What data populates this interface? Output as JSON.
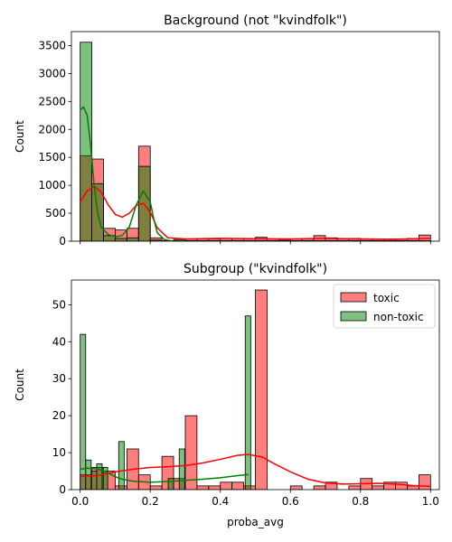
{
  "chart_data": [
    {
      "type": "histogram",
      "title": "Background (not \"kvindfolk\")",
      "xlabel": "",
      "ylabel": "Count",
      "xlim": [
        -0.025,
        1.025
      ],
      "ylim": [
        0,
        3750
      ],
      "yticks": [
        0,
        500,
        1000,
        1500,
        2000,
        2500,
        3000,
        3500
      ],
      "xticks": [
        0.0,
        0.2,
        0.4,
        0.6,
        0.8,
        1.0
      ],
      "show_xtick_labels": false,
      "legend": false,
      "bin_width": 0.0333,
      "series": [
        {
          "name": "toxic",
          "color": "#ff0000",
          "bins": [
            [
              0.0,
              1530
            ],
            [
              0.0333,
              1470
            ],
            [
              0.0667,
              230
            ],
            [
              0.1,
              200
            ],
            [
              0.1333,
              230
            ],
            [
              0.1667,
              1700
            ],
            [
              0.2,
              60
            ],
            [
              0.2333,
              10
            ],
            [
              0.2667,
              30
            ],
            [
              0.3,
              40
            ],
            [
              0.3333,
              40
            ],
            [
              0.3667,
              40
            ],
            [
              0.4,
              50
            ],
            [
              0.4333,
              50
            ],
            [
              0.4667,
              40
            ],
            [
              0.5,
              70
            ],
            [
              0.5333,
              40
            ],
            [
              0.5667,
              30
            ],
            [
              0.6,
              40
            ],
            [
              0.6333,
              40
            ],
            [
              0.6667,
              100
            ],
            [
              0.7,
              60
            ],
            [
              0.7333,
              40
            ],
            [
              0.7667,
              50
            ],
            [
              0.8,
              40
            ],
            [
              0.8333,
              40
            ],
            [
              0.8667,
              40
            ],
            [
              0.9,
              40
            ],
            [
              0.9333,
              50
            ],
            [
              0.9667,
              110
            ]
          ],
          "kde": [
            [
              0.0,
              700
            ],
            [
              0.02,
              900
            ],
            [
              0.04,
              980
            ],
            [
              0.06,
              880
            ],
            [
              0.08,
              650
            ],
            [
              0.1,
              480
            ],
            [
              0.12,
              430
            ],
            [
              0.14,
              500
            ],
            [
              0.16,
              640
            ],
            [
              0.18,
              680
            ],
            [
              0.2,
              520
            ],
            [
              0.22,
              240
            ],
            [
              0.25,
              60
            ],
            [
              0.3,
              40
            ],
            [
              0.4,
              50
            ],
            [
              0.5,
              45
            ],
            [
              0.6,
              40
            ],
            [
              0.7,
              50
            ],
            [
              0.8,
              40
            ],
            [
              0.9,
              35
            ],
            [
              0.95,
              45
            ],
            [
              1.0,
              50
            ]
          ]
        },
        {
          "name": "non-toxic",
          "color": "#008000",
          "bins": [
            [
              0.0,
              3560
            ],
            [
              0.0333,
              1030
            ],
            [
              0.0667,
              100
            ],
            [
              0.1,
              50
            ],
            [
              0.1333,
              60
            ],
            [
              0.1667,
              1340
            ],
            [
              0.2,
              20
            ],
            [
              0.2333,
              10
            ],
            [
              0.2667,
              10
            ],
            [
              0.3,
              10
            ],
            [
              0.3333,
              10
            ],
            [
              0.3667,
              10
            ],
            [
              0.4,
              10
            ],
            [
              0.4333,
              10
            ],
            [
              0.4667,
              10
            ],
            [
              0.5,
              10
            ],
            [
              0.5333,
              10
            ],
            [
              0.5667,
              10
            ],
            [
              0.6,
              10
            ],
            [
              0.6333,
              10
            ],
            [
              0.6667,
              10
            ],
            [
              0.7,
              10
            ],
            [
              0.7333,
              10
            ],
            [
              0.7667,
              10
            ],
            [
              0.8,
              10
            ],
            [
              0.8333,
              10
            ],
            [
              0.8667,
              10
            ],
            [
              0.9,
              10
            ],
            [
              0.9333,
              10
            ],
            [
              0.9667,
              10
            ]
          ],
          "kde": [
            [
              0.0,
              2350
            ],
            [
              0.01,
              2400
            ],
            [
              0.02,
              2250
            ],
            [
              0.03,
              1700
            ],
            [
              0.04,
              1000
            ],
            [
              0.05,
              500
            ],
            [
              0.06,
              250
            ],
            [
              0.08,
              120
            ],
            [
              0.1,
              80
            ],
            [
              0.12,
              100
            ],
            [
              0.14,
              250
            ],
            [
              0.16,
              650
            ],
            [
              0.18,
              900
            ],
            [
              0.2,
              700
            ],
            [
              0.21,
              400
            ],
            [
              0.22,
              150
            ],
            [
              0.24,
              30
            ],
            [
              0.26,
              5
            ],
            [
              0.3,
              2
            ]
          ]
        }
      ]
    },
    {
      "type": "histogram",
      "title": "Subgroup (\"kvindfolk\")",
      "xlabel": "proba_avg",
      "ylabel": "Count",
      "xlim": [
        -0.025,
        1.025
      ],
      "ylim": [
        0,
        56.7
      ],
      "yticks": [
        0,
        10,
        20,
        30,
        40,
        50
      ],
      "xticks": [
        0.0,
        0.2,
        0.4,
        0.6,
        0.8,
        1.0
      ],
      "xtick_labels": [
        "0.0",
        "0.2",
        "0.4",
        "0.6",
        "0.8",
        "1.0"
      ],
      "show_xtick_labels": true,
      "legend": true,
      "legend_position": "top-right",
      "series": [
        {
          "name": "toxic",
          "color": "#ff0000",
          "bin_width": 0.0333,
          "bins": [
            [
              0.0,
              4
            ],
            [
              0.0333,
              6
            ],
            [
              0.0667,
              5
            ],
            [
              0.1,
              1
            ],
            [
              0.1333,
              11
            ],
            [
              0.1667,
              4
            ],
            [
              0.2,
              1
            ],
            [
              0.2333,
              9
            ],
            [
              0.2667,
              3
            ],
            [
              0.3,
              20
            ],
            [
              0.3333,
              1
            ],
            [
              0.3667,
              1
            ],
            [
              0.4,
              2
            ],
            [
              0.4333,
              2
            ],
            [
              0.4667,
              1
            ],
            [
              0.5,
              54
            ],
            [
              0.5333,
              0
            ],
            [
              0.5667,
              0
            ],
            [
              0.6,
              1
            ],
            [
              0.6333,
              0
            ],
            [
              0.6667,
              1
            ],
            [
              0.7,
              2
            ],
            [
              0.7333,
              0
            ],
            [
              0.7667,
              1
            ],
            [
              0.8,
              3
            ],
            [
              0.8333,
              1
            ],
            [
              0.8667,
              2
            ],
            [
              0.9,
              2
            ],
            [
              0.9333,
              1
            ],
            [
              0.9667,
              4
            ]
          ],
          "kde": [
            [
              0.0,
              3.5
            ],
            [
              0.05,
              3.8
            ],
            [
              0.1,
              4.8
            ],
            [
              0.15,
              5.5
            ],
            [
              0.2,
              6.0
            ],
            [
              0.25,
              6.2
            ],
            [
              0.3,
              6.5
            ],
            [
              0.35,
              7.2
            ],
            [
              0.4,
              8.2
            ],
            [
              0.45,
              9.3
            ],
            [
              0.48,
              9.5
            ],
            [
              0.52,
              8.8
            ],
            [
              0.55,
              7.2
            ],
            [
              0.6,
              4.8
            ],
            [
              0.65,
              2.8
            ],
            [
              0.7,
              1.8
            ],
            [
              0.75,
              1.5
            ],
            [
              0.8,
              1.6
            ],
            [
              0.85,
              1.7
            ],
            [
              0.9,
              1.5
            ],
            [
              0.95,
              1.1
            ],
            [
              1.0,
              0.9
            ]
          ]
        },
        {
          "name": "non-toxic",
          "color": "#008000",
          "bin_width": 0.0157,
          "bins": [
            [
              0.0,
              42
            ],
            [
              0.0157,
              8
            ],
            [
              0.0314,
              5
            ],
            [
              0.0471,
              7
            ],
            [
              0.0628,
              6
            ],
            [
              0.0785,
              0
            ],
            [
              0.0942,
              0
            ],
            [
              0.1099,
              13
            ],
            [
              0.1256,
              0
            ],
            [
              0.1413,
              0
            ],
            [
              0.157,
              0
            ],
            [
              0.1727,
              0
            ],
            [
              0.1884,
              0
            ],
            [
              0.2041,
              0
            ],
            [
              0.2198,
              0
            ],
            [
              0.2355,
              0
            ],
            [
              0.2512,
              3
            ],
            [
              0.2669,
              0
            ],
            [
              0.2826,
              11
            ],
            [
              0.2983,
              0
            ],
            [
              0.314,
              0
            ],
            [
              0.3297,
              0
            ],
            [
              0.3454,
              0
            ],
            [
              0.3611,
              0
            ],
            [
              0.3768,
              0
            ],
            [
              0.3925,
              0
            ],
            [
              0.4082,
              0
            ],
            [
              0.4239,
              0
            ],
            [
              0.4396,
              0
            ],
            [
              0.4553,
              0
            ],
            [
              0.471,
              47
            ]
          ],
          "kde": [
            [
              0.0,
              5.5
            ],
            [
              0.02,
              5.8
            ],
            [
              0.05,
              5.6
            ],
            [
              0.08,
              4.5
            ],
            [
              0.1,
              3.5
            ],
            [
              0.12,
              2.8
            ],
            [
              0.15,
              2.3
            ],
            [
              0.2,
              2.0
            ],
            [
              0.25,
              2.2
            ],
            [
              0.3,
              2.5
            ],
            [
              0.35,
              2.8
            ],
            [
              0.4,
              3.2
            ],
            [
              0.45,
              3.8
            ],
            [
              0.48,
              4.1
            ]
          ]
        }
      ]
    }
  ]
}
